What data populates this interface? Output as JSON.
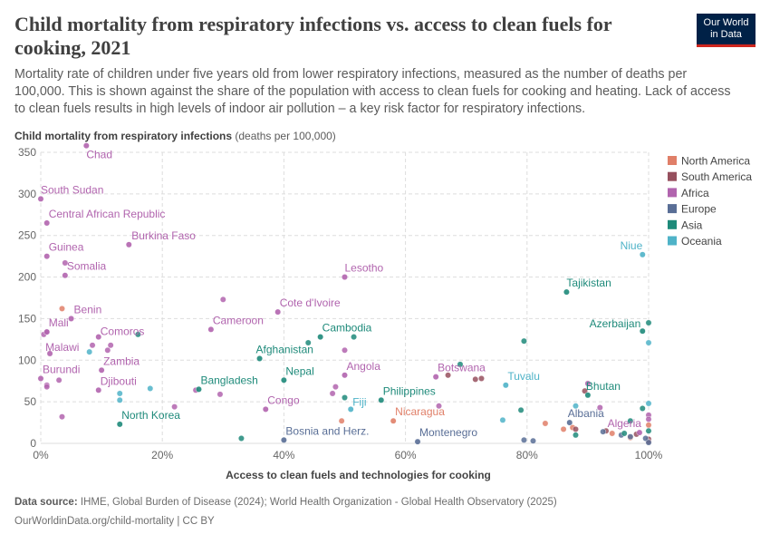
{
  "header": {
    "title": "Child mortality from respiratory infections vs. access to clean fuels for cooking, 2021",
    "subtitle": "Mortality rate of children under five years old from lower respiratory infections, measured as the number of deaths per 100,000. This is shown against the share of the population with access to clean fuels for cooking and heating. Lack of access to clean fuels results in high levels of indoor air pollution – a key risk factor for respiratory infections.",
    "logo_line1": "Our World",
    "logo_line2": "in Data"
  },
  "footer": {
    "source_label": "Data source:",
    "source_text": "IHME, Global Burden of Disease (2024); World Health Organization - Global Health Observatory (2025)",
    "url_text": "OurWorldinData.org/child-mortality | CC BY"
  },
  "colors": {
    "North America": "#e07f68",
    "South America": "#96505e",
    "Africa": "#b164ae",
    "Europe": "#596e96",
    "Asia": "#1e8a7a",
    "Oceania": "#4fb3c8"
  },
  "chart_data": {
    "type": "scatter",
    "title": "Child mortality from respiratory infections vs. access to clean fuels for cooking, 2021",
    "ylabel": "Child mortality from respiratory infections",
    "ylabel_unit": "(deaths per 100,000)",
    "xlabel": "Access to clean fuels and technologies for cooking",
    "xlim": [
      0,
      100
    ],
    "ylim": [
      0,
      350
    ],
    "x_ticks": [
      "0%",
      "20%",
      "40%",
      "60%",
      "80%",
      "100%"
    ],
    "y_ticks": [
      "0",
      "50",
      "100",
      "150",
      "200",
      "250",
      "300",
      "350"
    ],
    "grid": true,
    "legend_position": "right",
    "legend": [
      "North America",
      "South America",
      "Africa",
      "Europe",
      "Asia",
      "Oceania"
    ],
    "labeled_points": [
      {
        "label": "Chad",
        "region": "Africa",
        "x": 7.5,
        "y": 358
      },
      {
        "label": "South Sudan",
        "region": "Africa",
        "x": 0,
        "y": 294
      },
      {
        "label": "Central African Republic",
        "region": "Africa",
        "x": 1,
        "y": 265
      },
      {
        "label": "Burkina Faso",
        "region": "Africa",
        "x": 14.5,
        "y": 239
      },
      {
        "label": "Guinea",
        "region": "Africa",
        "x": 1,
        "y": 225
      },
      {
        "label": "Somalia",
        "region": "Africa",
        "x": 4,
        "y": 202
      },
      {
        "label": "Lesotho",
        "region": "Africa",
        "x": 50,
        "y": 200
      },
      {
        "label": "Benin",
        "region": "Africa",
        "x": 5,
        "y": 150
      },
      {
        "label": "Cote d'Ivoire",
        "region": "Africa",
        "x": 39,
        "y": 158
      },
      {
        "label": "Mali",
        "region": "Africa",
        "x": 1,
        "y": 134
      },
      {
        "label": "Cameroon",
        "region": "Africa",
        "x": 28,
        "y": 137
      },
      {
        "label": "Cambodia",
        "region": "Asia",
        "x": 46,
        "y": 128
      },
      {
        "label": "Malawi",
        "region": "Africa",
        "x": 1.5,
        "y": 108
      },
      {
        "label": "Comoros",
        "region": "Africa",
        "x": 9.5,
        "y": 128
      },
      {
        "label": "Afghanistan",
        "region": "Asia",
        "x": 36,
        "y": 102
      },
      {
        "label": "Zambia",
        "region": "Africa",
        "x": 10,
        "y": 88
      },
      {
        "label": "Angola",
        "region": "Africa",
        "x": 50,
        "y": 82
      },
      {
        "label": "Botswana",
        "region": "Africa",
        "x": 65,
        "y": 80
      },
      {
        "label": "Nepal",
        "region": "Asia",
        "x": 40,
        "y": 76
      },
      {
        "label": "Burundi",
        "region": "Africa",
        "x": 0,
        "y": 78
      },
      {
        "label": "Djibouti",
        "region": "Africa",
        "x": 9.5,
        "y": 64
      },
      {
        "label": "Bangladesh",
        "region": "Asia",
        "x": 26,
        "y": 65
      },
      {
        "label": "Tuvalu",
        "region": "Oceania",
        "x": 76.5,
        "y": 70
      },
      {
        "label": "Philippines",
        "region": "Asia",
        "x": 56,
        "y": 52
      },
      {
        "label": "Fiji",
        "region": "Oceania",
        "x": 51,
        "y": 41
      },
      {
        "label": "Congo",
        "region": "Africa",
        "x": 37,
        "y": 41
      },
      {
        "label": "North Korea",
        "region": "Asia",
        "x": 13,
        "y": 23
      },
      {
        "label": "Nicaragua",
        "region": "North America",
        "x": 58,
        "y": 27
      },
      {
        "label": "Bosnia and Herz.",
        "region": "Europe",
        "x": 40,
        "y": 4
      },
      {
        "label": "Montenegro",
        "region": "Europe",
        "x": 62,
        "y": 2
      },
      {
        "label": "Niue",
        "region": "Oceania",
        "x": 99,
        "y": 227
      },
      {
        "label": "Tajikistan",
        "region": "Asia",
        "x": 86.5,
        "y": 182
      },
      {
        "label": "Azerbaijan",
        "region": "Asia",
        "x": 99,
        "y": 135
      },
      {
        "label": "Bhutan",
        "region": "Asia",
        "x": 90,
        "y": 58
      },
      {
        "label": "Albania",
        "region": "Europe",
        "x": 87,
        "y": 25
      },
      {
        "label": "Algeria",
        "region": "Africa",
        "x": 98.5,
        "y": 13
      }
    ],
    "other_points": [
      {
        "region": "Africa",
        "x": 4,
        "y": 217
      },
      {
        "region": "Africa",
        "x": 30,
        "y": 173
      },
      {
        "region": "Africa",
        "x": 0.5,
        "y": 131
      },
      {
        "region": "Africa",
        "x": 1,
        "y": 134
      },
      {
        "region": "Africa",
        "x": 8.5,
        "y": 118
      },
      {
        "region": "Africa",
        "x": 11,
        "y": 112
      },
      {
        "region": "Africa",
        "x": 11.5,
        "y": 118
      },
      {
        "region": "Africa",
        "x": 3,
        "y": 76
      },
      {
        "region": "Africa",
        "x": 1,
        "y": 70
      },
      {
        "region": "Africa",
        "x": 1,
        "y": 68
      },
      {
        "region": "Africa",
        "x": 3.5,
        "y": 32
      },
      {
        "region": "Africa",
        "x": 22,
        "y": 44
      },
      {
        "region": "Africa",
        "x": 25.5,
        "y": 64
      },
      {
        "region": "Africa",
        "x": 29.5,
        "y": 59
      },
      {
        "region": "Africa",
        "x": 48.5,
        "y": 68
      },
      {
        "region": "Africa",
        "x": 48,
        "y": 60
      },
      {
        "region": "Africa",
        "x": 50,
        "y": 112
      },
      {
        "region": "Africa",
        "x": 65.5,
        "y": 45
      },
      {
        "region": "Africa",
        "x": 90,
        "y": 72
      },
      {
        "region": "Africa",
        "x": 92,
        "y": 43
      },
      {
        "region": "Africa",
        "x": 100,
        "y": 34
      },
      {
        "region": "Africa",
        "x": 100,
        "y": 29
      },
      {
        "region": "North America",
        "x": 3.5,
        "y": 162
      },
      {
        "region": "North America",
        "x": 49.5,
        "y": 27
      },
      {
        "region": "North America",
        "x": 83,
        "y": 24
      },
      {
        "region": "North America",
        "x": 86,
        "y": 17
      },
      {
        "region": "North America",
        "x": 87.5,
        "y": 19
      },
      {
        "region": "North America",
        "x": 94,
        "y": 12
      },
      {
        "region": "North America",
        "x": 97,
        "y": 7
      },
      {
        "region": "North America",
        "x": 100,
        "y": 22
      },
      {
        "region": "South America",
        "x": 67,
        "y": 82
      },
      {
        "region": "South America",
        "x": 71.5,
        "y": 77
      },
      {
        "region": "South America",
        "x": 72.5,
        "y": 78
      },
      {
        "region": "South America",
        "x": 89.5,
        "y": 63
      },
      {
        "region": "South America",
        "x": 88,
        "y": 17
      },
      {
        "region": "South America",
        "x": 93,
        "y": 15
      },
      {
        "region": "South America",
        "x": 98,
        "y": 11
      },
      {
        "region": "South America",
        "x": 100,
        "y": 5
      },
      {
        "region": "South America",
        "x": 100,
        "y": 2
      },
      {
        "region": "Europe",
        "x": 79.5,
        "y": 4
      },
      {
        "region": "Europe",
        "x": 81,
        "y": 3
      },
      {
        "region": "Europe",
        "x": 92.5,
        "y": 14
      },
      {
        "region": "Europe",
        "x": 95.5,
        "y": 10
      },
      {
        "region": "Europe",
        "x": 97,
        "y": 8
      },
      {
        "region": "Europe",
        "x": 99.5,
        "y": 6
      },
      {
        "region": "Europe",
        "x": 100,
        "y": 1
      },
      {
        "region": "Asia",
        "x": 16,
        "y": 131
      },
      {
        "region": "Asia",
        "x": 44,
        "y": 121
      },
      {
        "region": "Asia",
        "x": 51.5,
        "y": 128
      },
      {
        "region": "Asia",
        "x": 69,
        "y": 95
      },
      {
        "region": "Asia",
        "x": 79.5,
        "y": 123
      },
      {
        "region": "Asia",
        "x": 33,
        "y": 6
      },
      {
        "region": "Asia",
        "x": 50,
        "y": 55
      },
      {
        "region": "Asia",
        "x": 79,
        "y": 40
      },
      {
        "region": "Asia",
        "x": 88,
        "y": 10
      },
      {
        "region": "Asia",
        "x": 96,
        "y": 12
      },
      {
        "region": "Asia",
        "x": 97,
        "y": 27
      },
      {
        "region": "Asia",
        "x": 99,
        "y": 42
      },
      {
        "region": "Asia",
        "x": 100,
        "y": 145
      },
      {
        "region": "Asia",
        "x": 100,
        "y": 15
      },
      {
        "region": "Oceania",
        "x": 8,
        "y": 110
      },
      {
        "region": "Oceania",
        "x": 13,
        "y": 60
      },
      {
        "region": "Oceania",
        "x": 13,
        "y": 52
      },
      {
        "region": "Oceania",
        "x": 18,
        "y": 66
      },
      {
        "region": "Oceania",
        "x": 76,
        "y": 28
      },
      {
        "region": "Oceania",
        "x": 88,
        "y": 45
      },
      {
        "region": "Oceania",
        "x": 100,
        "y": 121
      },
      {
        "region": "Oceania",
        "x": 100,
        "y": 48
      }
    ]
  }
}
